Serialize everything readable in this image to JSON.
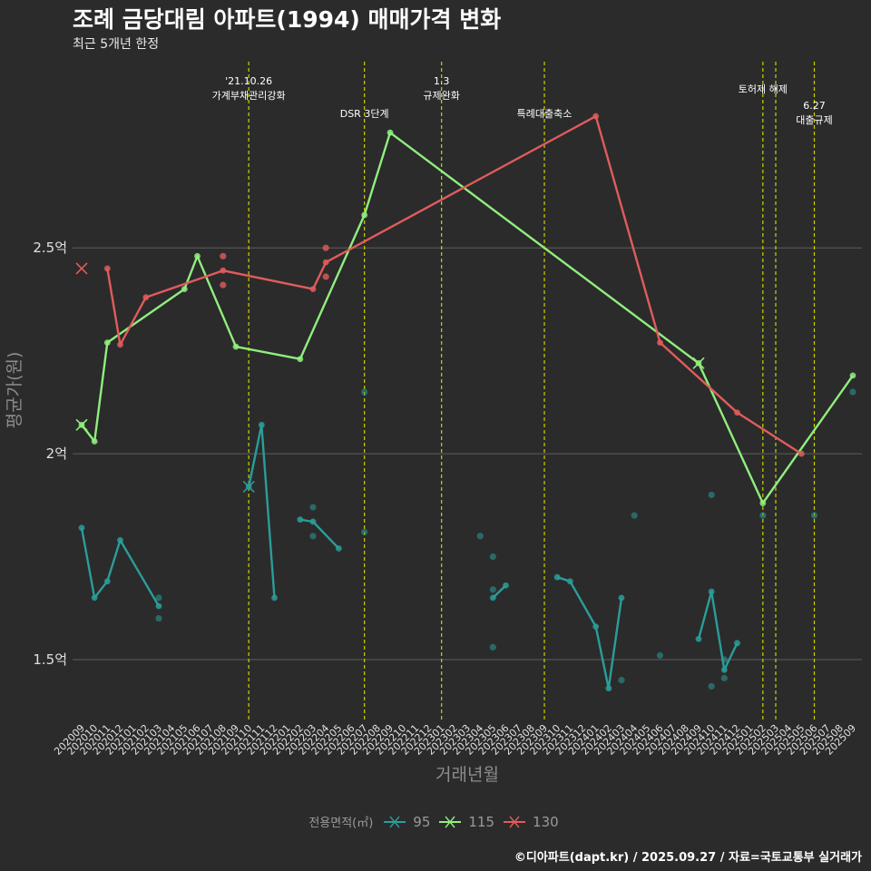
{
  "header": {
    "title": "조례 금당대림 아파트(1994) 매매가격 변화",
    "subtitle": "최근 5개년 한정"
  },
  "footer": {
    "caption": "©디아파트(dapt.kr) / 2025.09.27 / 자료=국토교통부 실거래가"
  },
  "chart_data": {
    "type": "line",
    "title": "조례 금당대림 아파트(1994) 매매가격 변화",
    "subtitle": "최근 5개년 한정",
    "xlabel": "거래년월",
    "ylabel": "평균가(원)",
    "ylim": [
      1.35,
      2.97
    ],
    "y_ticks": [
      {
        "value": 1.5,
        "label": "1.5억"
      },
      {
        "value": 2.0,
        "label": "2억"
      },
      {
        "value": 2.5,
        "label": "2.5억"
      }
    ],
    "x_categories": [
      "202009",
      "202010",
      "202011",
      "202012",
      "202101",
      "202102",
      "202103",
      "202104",
      "202105",
      "202106",
      "202107",
      "202108",
      "202109",
      "202110",
      "202111",
      "202112",
      "202201",
      "202202",
      "202203",
      "202204",
      "202205",
      "202206",
      "202207",
      "202208",
      "202209",
      "202210",
      "202211",
      "202212",
      "202301",
      "202302",
      "202303",
      "202304",
      "202305",
      "202306",
      "202307",
      "202308",
      "202309",
      "202310",
      "202311",
      "202312",
      "202401",
      "202402",
      "202403",
      "202404",
      "202405",
      "202406",
      "202407",
      "202408",
      "202409",
      "202410",
      "202411",
      "202412",
      "202501",
      "202502",
      "202503",
      "202504",
      "202505",
      "202506",
      "202507",
      "202508",
      "202509"
    ],
    "legend_title": "전용면적(㎡)",
    "series": [
      {
        "name": "95",
        "color": "#2a9d99",
        "line": [
          [
            [
              "202009",
              1.82
            ],
            [
              "202010",
              1.65
            ],
            [
              "202011",
              1.69
            ],
            [
              "202012",
              1.79
            ],
            [
              "202103",
              1.63
            ]
          ],
          [
            [
              "202110",
              1.92
            ],
            [
              "202111",
              2.07
            ],
            [
              "202112",
              1.65
            ]
          ],
          [
            [
              "202202",
              1.84
            ],
            [
              "202203",
              1.835
            ],
            [
              "202205",
              1.77
            ]
          ],
          [
            [
              "202305",
              1.65
            ],
            [
              "202306",
              1.68
            ]
          ],
          [
            [
              "202310",
              1.7
            ],
            [
              "202311",
              1.69
            ],
            [
              "202401",
              1.58
            ],
            [
              "202402",
              1.43
            ],
            [
              "202403",
              1.65
            ]
          ],
          [
            [
              "202409",
              1.55
            ],
            [
              "202410",
              1.665
            ],
            [
              "202411",
              1.475
            ],
            [
              "202412",
              1.54
            ]
          ]
        ],
        "points": [
          [
            "202103",
            1.65
          ],
          [
            "202103",
            1.6
          ],
          [
            "202203",
            1.87
          ],
          [
            "202203",
            1.8
          ],
          [
            "202207",
            2.15
          ],
          [
            "202207",
            1.81
          ],
          [
            "202304",
            1.8
          ],
          [
            "202305",
            1.75
          ],
          [
            "202305",
            1.67
          ],
          [
            "202305",
            1.53
          ],
          [
            "202403",
            1.45
          ],
          [
            "202404",
            1.85
          ],
          [
            "202406",
            1.51
          ],
          [
            "202410",
            1.9
          ],
          [
            "202410",
            1.435
          ],
          [
            "202411",
            1.455
          ],
          [
            "202411",
            1.5
          ],
          [
            "202502",
            1.85
          ],
          [
            "202506",
            1.85
          ],
          [
            "202509",
            2.15
          ]
        ],
        "x_marker": [
          "202110",
          1.92
        ]
      },
      {
        "name": "115",
        "color": "#90ee7e",
        "line": [
          [
            [
              "202009",
              2.07
            ],
            [
              "202010",
              2.03
            ],
            [
              "202011",
              2.27
            ],
            [
              "202105",
              2.4
            ],
            [
              "202106",
              2.48
            ],
            [
              "202109",
              2.26
            ],
            [
              "202202",
              2.23
            ],
            [
              "202207",
              2.58
            ],
            [
              "202209",
              2.78
            ],
            [
              "202409",
              2.22
            ],
            [
              "202502",
              1.88
            ],
            [
              "202509",
              2.19
            ]
          ]
        ],
        "points": [],
        "x_marker": [
          "202009",
          2.07
        ],
        "x_marker_2": [
          "202409",
          2.22
        ]
      },
      {
        "name": "130",
        "color": "#e05c5c",
        "line": [
          [
            [
              "202011",
              2.45
            ],
            [
              "202012",
              2.265
            ],
            [
              "202102",
              2.38
            ],
            [
              "202108",
              2.445
            ],
            [
              "202203",
              2.4
            ],
            [
              "202204",
              2.465
            ],
            [
              "202401",
              2.82
            ],
            [
              "202406",
              2.27
            ],
            [
              "202412",
              2.1
            ],
            [
              "202505",
              2.0
            ]
          ]
        ],
        "points": [
          [
            "202108",
            2.48
          ],
          [
            "202108",
            2.41
          ],
          [
            "202204",
            2.5
          ],
          [
            "202204",
            2.43
          ]
        ],
        "x_marker": [
          "202009",
          2.45
        ]
      }
    ],
    "events": [
      {
        "x": "202110",
        "label": "'21.10.26\n가계부채관리강화"
      },
      {
        "x": "202207",
        "label": "DSR 3단계"
      },
      {
        "x": "202301",
        "label": "1.3\n규제완화"
      },
      {
        "x": "202309",
        "label": "특례대출축소"
      },
      {
        "x": "202502",
        "label": "토허제 해제"
      },
      {
        "x": "202503",
        "label": ""
      },
      {
        "x": "202506",
        "label": "6.27\n대출규제"
      }
    ]
  }
}
